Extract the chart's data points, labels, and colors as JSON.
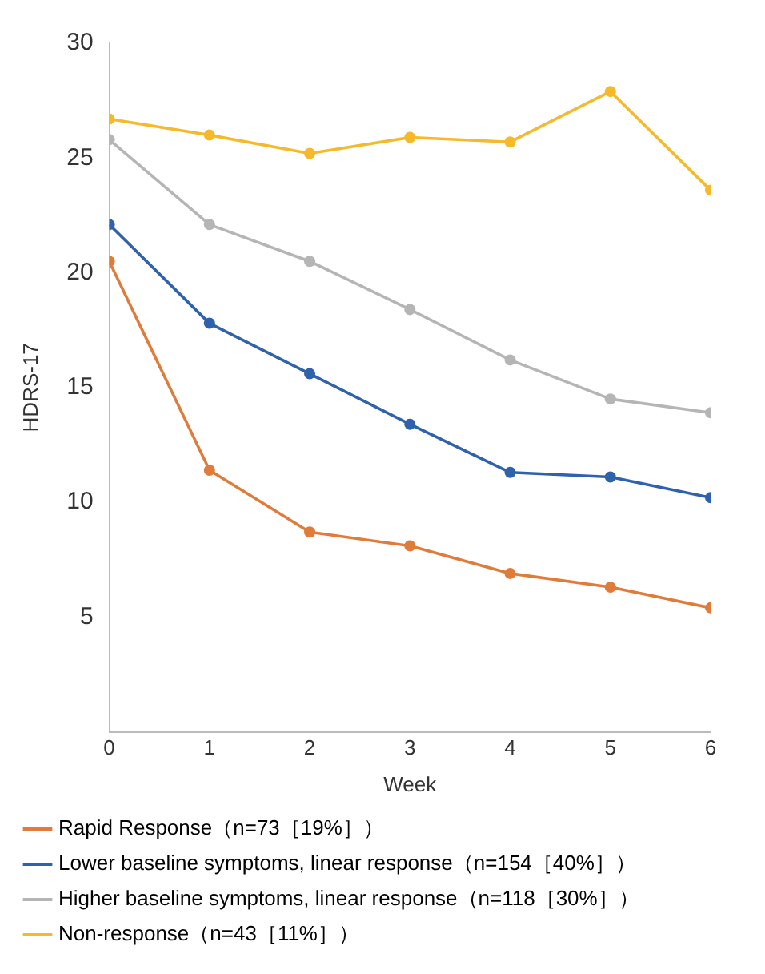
{
  "chart_data": {
    "type": "line",
    "xlabel": "Week",
    "ylabel": "HDRS-17",
    "x": [
      0,
      1,
      2,
      3,
      4,
      5,
      6
    ],
    "xlim": [
      0,
      6
    ],
    "xticks": [
      0,
      1,
      2,
      3,
      4,
      5,
      6
    ],
    "ylim": [
      0,
      30
    ],
    "yticks": [
      5,
      10,
      15,
      20,
      25,
      30
    ],
    "grid": false,
    "legend": "bottom",
    "marker": "circle",
    "line_style": "solid",
    "series": [
      {
        "name": "Rapid Response（n=73［19%］）",
        "color": "#e07b39",
        "values": [
          20.5,
          11.4,
          8.7,
          8.1,
          6.9,
          6.3,
          5.4
        ]
      },
      {
        "name": "Lower baseline symptoms, linear response（n=154［40%］）",
        "color": "#2e62ae",
        "values": [
          22.1,
          17.8,
          15.6,
          13.4,
          11.3,
          11.1,
          10.2
        ]
      },
      {
        "name": "Higher baseline symptoms, linear response（n=118［30%］）",
        "color": "#b5b5b5",
        "values": [
          25.8,
          22.1,
          20.5,
          18.4,
          16.2,
          14.5,
          13.9
        ]
      },
      {
        "name": "Non-response（n=43［11%］）",
        "color": "#f6b929",
        "values": [
          26.7,
          26.0,
          25.2,
          25.9,
          25.7,
          27.9,
          23.6
        ]
      }
    ]
  }
}
